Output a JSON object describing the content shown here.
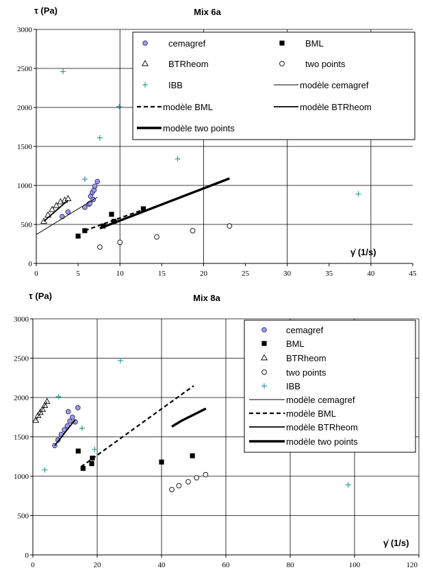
{
  "charts": [
    {
      "type": "scatter",
      "title": "Mix 6a",
      "ylabel": "τ (Pa)",
      "xlabel": "γ̇ (1/s)",
      "xlim": [
        0,
        45
      ],
      "ylim": [
        0,
        3000
      ],
      "xticks": [
        0,
        5,
        10,
        15,
        20,
        25,
        30,
        35,
        40,
        45
      ],
      "yticks": [
        0,
        500,
        1000,
        1500,
        2000,
        2500,
        3000
      ],
      "x_grid_step": 10,
      "grid": true,
      "legend_position": "top-right",
      "legend": [
        {
          "label": "cemagref",
          "key": "cemagref"
        },
        {
          "label": "BML",
          "key": "bml"
        },
        {
          "label": "BTRheom",
          "key": "btrheom"
        },
        {
          "label": "two points",
          "key": "two_points"
        },
        {
          "label": "IBB",
          "key": "ibb"
        },
        {
          "label": "modèle cemagref",
          "key": "m_cemagref"
        },
        {
          "label": "modèle BML",
          "key": "m_bml"
        },
        {
          "label": "modèle BTRheom",
          "key": "m_btrheom"
        },
        {
          "label": "modèle two points",
          "key": "m_two_points"
        }
      ],
      "series": [
        {
          "key": "cemagref",
          "kind": "points",
          "marker": "circle",
          "color": "#9999ee",
          "x": [
            3.1,
            3.8,
            5.8,
            6.3,
            6.5,
            6.7,
            6.9,
            7.0,
            7.3,
            6.4,
            6.8
          ],
          "y": [
            600,
            660,
            720,
            760,
            860,
            910,
            940,
            990,
            1050,
            770,
            820
          ]
        },
        {
          "key": "bml",
          "kind": "points",
          "marker": "square",
          "color": "#000000",
          "x": [
            5.0,
            5.8,
            8.0,
            9.0,
            9.3,
            12.8
          ],
          "y": [
            350,
            420,
            480,
            630,
            540,
            700
          ]
        },
        {
          "key": "btrheom",
          "kind": "points",
          "marker": "triangle",
          "color": "#000000",
          "x": [
            0.9,
            1.4,
            1.9,
            2.4,
            2.9,
            3.4,
            3.8
          ],
          "y": [
            540,
            620,
            690,
            740,
            790,
            810,
            830
          ]
        },
        {
          "key": "two_points",
          "kind": "points",
          "marker": "open-circle",
          "color": "#000000",
          "x": [
            7.6,
            10.0,
            14.4,
            18.7,
            23.1
          ],
          "y": [
            210,
            270,
            340,
            420,
            480
          ]
        },
        {
          "key": "ibb",
          "kind": "points",
          "marker": "plus",
          "color": "#339999",
          "x": [
            3.2,
            5.8,
            7.6,
            9.9,
            16.9,
            38.5
          ],
          "y": [
            2460,
            1080,
            1610,
            2010,
            1340,
            890
          ]
        },
        {
          "key": "m_cemagref",
          "kind": "line",
          "style": "thin",
          "x": [
            0,
            7.3
          ],
          "y": [
            370,
            850
          ]
        },
        {
          "key": "m_bml",
          "kind": "line",
          "style": "dashed",
          "x": [
            5.8,
            12.8
          ],
          "y": [
            420,
            690
          ]
        },
        {
          "key": "m_btrheom",
          "kind": "line",
          "style": "medium",
          "x": [
            0.9,
            3.8
          ],
          "y": [
            540,
            810
          ]
        },
        {
          "key": "m_two_points",
          "kind": "line",
          "style": "thick",
          "x": [
            7.6,
            23.1
          ],
          "y": [
            450,
            1090
          ]
        }
      ]
    },
    {
      "type": "scatter",
      "title": "Mix 8a",
      "ylabel": "τ (Pa)",
      "xlabel": "γ̇ (1/s)",
      "xlim": [
        0,
        120
      ],
      "ylim": [
        0,
        3000
      ],
      "xticks": [
        0,
        20,
        40,
        60,
        80,
        100,
        120
      ],
      "xtick_labels": [
        "0",
        "20",
        "40",
        "60",
        "80",
        "100",
        "120"
      ],
      "yticks": [
        0,
        500,
        1000,
        1500,
        2000,
        2500,
        3000
      ],
      "x_grid_step": 20,
      "grid": true,
      "legend_position": "top-right",
      "legend": [
        {
          "label": "cemagref",
          "key": "cemagref"
        },
        {
          "label": "BML",
          "key": "bml"
        },
        {
          "label": "BTRheom",
          "key": "btrheom"
        },
        {
          "label": "two points",
          "key": "two_points"
        },
        {
          "label": "IBB",
          "key": "ibb"
        },
        {
          "label": "modèle cemagref",
          "key": "m_cemagref"
        },
        {
          "label": "modèle BML",
          "key": "m_bml"
        },
        {
          "label": "modèle BTRheom",
          "key": "m_btrheom"
        },
        {
          "label": "modèle two points",
          "key": "m_two_points"
        }
      ],
      "series": [
        {
          "key": "cemagref",
          "kind": "points",
          "marker": "circle",
          "color": "#9999ee",
          "x": [
            6.8,
            7.8,
            8.8,
            9.8,
            10.7,
            11.5,
            12.3,
            13.2,
            11.0,
            14.0
          ],
          "y": [
            1390,
            1460,
            1530,
            1590,
            1640,
            1700,
            1750,
            1690,
            1820,
            1870
          ]
        },
        {
          "key": "bml",
          "kind": "points",
          "marker": "square",
          "color": "#000000",
          "x": [
            14.1,
            15.6,
            18.3,
            18.5,
            40.0,
            49.6
          ],
          "y": [
            1320,
            1100,
            1160,
            1230,
            1180,
            1260
          ]
        },
        {
          "key": "btrheom",
          "kind": "points",
          "marker": "triangle",
          "color": "#000000",
          "x": [
            0.9,
            1.6,
            2.3,
            3.0,
            3.7,
            4.4
          ],
          "y": [
            1710,
            1770,
            1810,
            1850,
            1900,
            1950
          ]
        },
        {
          "key": "two_points",
          "kind": "points",
          "marker": "open-circle",
          "color": "#000000",
          "x": [
            43.2,
            45.4,
            48.3,
            50.9,
            53.7
          ],
          "y": [
            830,
            880,
            930,
            980,
            1020
          ]
        },
        {
          "key": "ibb",
          "kind": "points",
          "marker": "plus",
          "color": "#339999",
          "x": [
            3.7,
            8.0,
            15.3,
            19.2,
            27.2,
            98.0
          ],
          "y": [
            1080,
            2010,
            1610,
            1340,
            2470,
            890
          ]
        },
        {
          "key": "m_cemagref",
          "kind": "line",
          "style": "thin",
          "x": [
            0.9,
            4.4
          ],
          "y": [
            1710,
            1950
          ]
        },
        {
          "key": "m_bml",
          "kind": "line",
          "style": "dashed",
          "x": [
            15.0,
            50.0
          ],
          "y": [
            1120,
            2150
          ]
        },
        {
          "key": "m_btrheom",
          "kind": "line",
          "style": "medium",
          "x": [
            6.8,
            13.2
          ],
          "y": [
            1390,
            1720
          ]
        },
        {
          "key": "m_two_points",
          "kind": "line",
          "style": "thick",
          "x": [
            43.2,
            46.0,
            53.8
          ],
          "y": [
            1630,
            1700,
            1860
          ]
        }
      ]
    }
  ]
}
